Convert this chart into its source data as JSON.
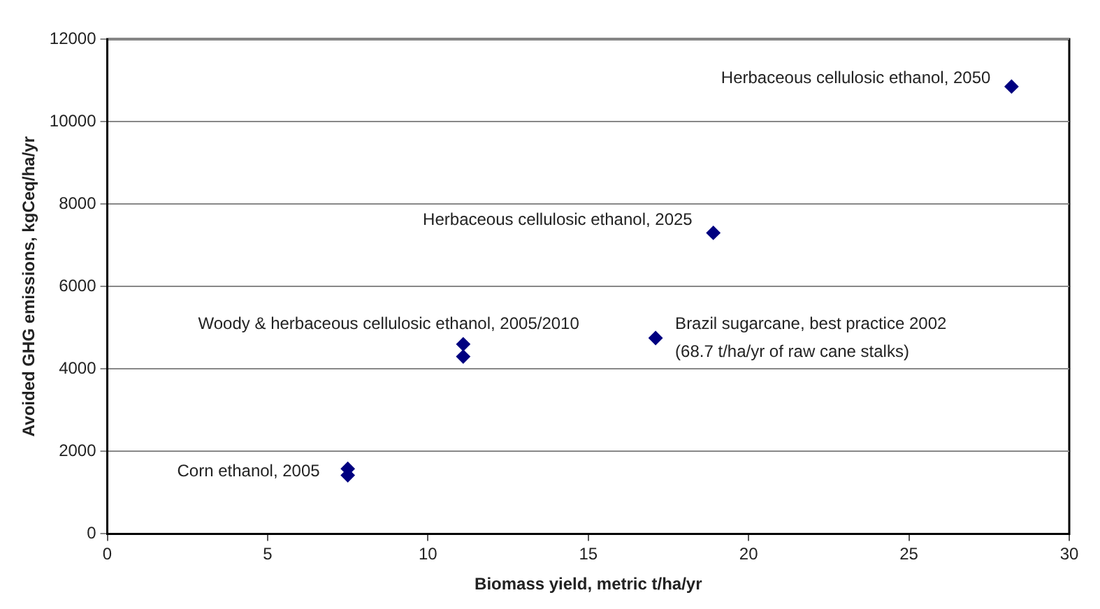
{
  "chart_data": {
    "type": "scatter",
    "xlabel": "Biomass yield, metric t/ha/yr",
    "ylabel": "Avoided GHG emissions, kgCeq/ha/yr",
    "series": [
      {
        "color": "#000080",
        "x": [
          7.5,
          7.5,
          11.1,
          11.1,
          17.1,
          18.9,
          28.2
        ],
        "values": [
          1580,
          1420,
          4600,
          4300,
          4750,
          7300,
          10850
        ]
      }
    ],
    "xlim": [
      0,
      30
    ],
    "xticks": [
      0,
      5,
      10,
      15,
      20,
      25,
      30
    ],
    "ylim": [
      0,
      12000
    ],
    "yticks": [
      0,
      2000,
      4000,
      6000,
      8000,
      10000,
      12000
    ],
    "grid": "y",
    "marker": "diamond",
    "legend": false,
    "annotations": [
      {
        "text": "Corn ethanol, 2005",
        "x": 7.5,
        "y": 1500
      },
      {
        "text": "Woody & herbaceous cellulosic ethanol, 2005/2010",
        "x": 11.1,
        "y": 4600
      },
      {
        "text": "Brazil sugarcane, best practice 2002\n(68.7 t/ha/yr of raw cane stalks)",
        "x": 17.1,
        "y": 4750
      },
      {
        "text": "Herbaceous cellulosic ethanol, 2025",
        "x": 18.9,
        "y": 7300
      },
      {
        "text": "Herbaceous cellulosic ethanol, 2050",
        "x": 28.2,
        "y": 10850
      }
    ]
  }
}
